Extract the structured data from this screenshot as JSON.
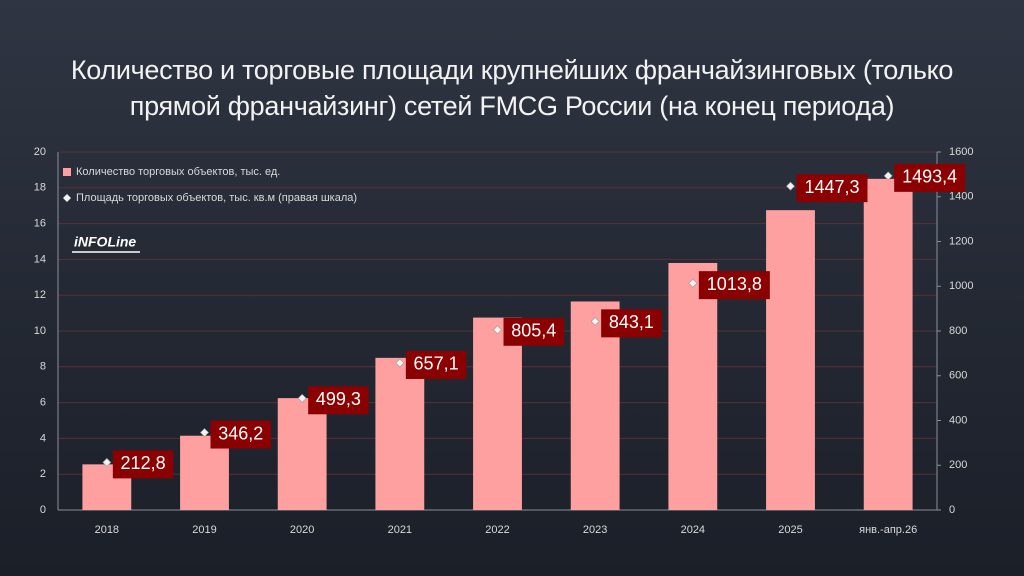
{
  "chart_data": {
    "type": "bar",
    "title": "Количество и торговые площади крупнейших франчайзинговых (только прямой франчайзинг) сетей FMCG России (на конец периода)",
    "watermark": "iNFOLine",
    "categories": [
      "2018",
      "2019",
      "2020",
      "2021",
      "2022",
      "2023",
      "2024",
      "2025",
      "янв.-апр.26"
    ],
    "series": [
      {
        "name": "Количество торговых объектов, тыс. ед.",
        "color": "#ffa0a0",
        "values": [
          2.55,
          4.15,
          6.25,
          8.5,
          10.75,
          11.65,
          13.8,
          16.75,
          18.5
        ]
      },
      {
        "name": "Площадь торговых объектов, тыс. кв.м (правая шкала)",
        "color": "#f2f2f2",
        "axis": "y2",
        "values": [
          212.8,
          346.2,
          499.3,
          657.1,
          805.4,
          843.1,
          1013.8,
          1447.3,
          1493.4
        ],
        "value_labels": [
          "212,8",
          "346,2",
          "499,3",
          "657,1",
          "805,4",
          "843,1",
          "1013,8",
          "1447,3",
          "1493,4"
        ],
        "label_color": "#8b0000"
      }
    ],
    "ylim": [
      0,
      20
    ],
    "yticks": [
      0,
      2,
      4,
      6,
      8,
      10,
      12,
      14,
      16,
      18,
      20
    ],
    "y2lim": [
      0,
      1600
    ],
    "y2ticks": [
      0,
      200,
      400,
      600,
      800,
      1000,
      1200,
      1400,
      1600
    ],
    "grid": true,
    "legend": "top-left"
  }
}
